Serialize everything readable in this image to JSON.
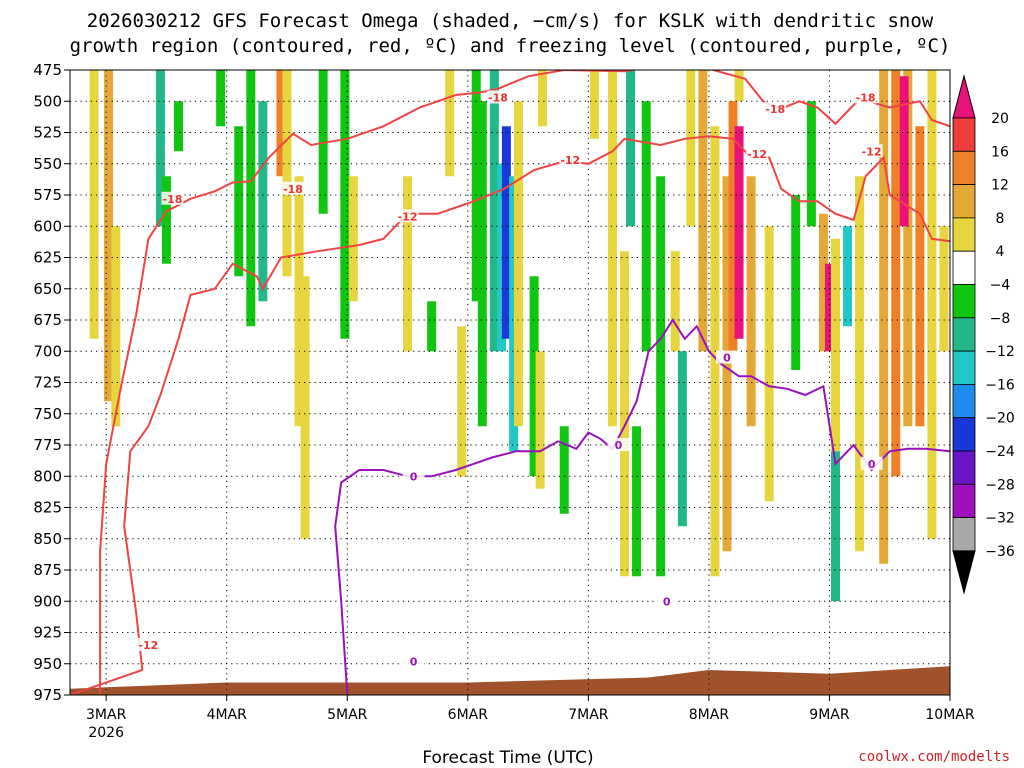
{
  "title_lines": [
    "2026030212 GFS Forecast Omega (shaded, −cm/s) for KSLK with dendritic snow",
    "growth region (contoured, red, ºC) and freezing level (contoured, purple, ºC)"
  ],
  "chart_data": {
    "type": "heatmap",
    "xlabel": "Forecast Time (UTC)",
    "ylabel": "",
    "credit": "coolwx.com/modelts",
    "x_ticks": [
      {
        "label": "3MAR",
        "sub": "2026",
        "t": 0
      },
      {
        "label": "4MAR",
        "sub": "",
        "t": 1
      },
      {
        "label": "5MAR",
        "sub": "",
        "t": 2
      },
      {
        "label": "6MAR",
        "sub": "",
        "t": 3
      },
      {
        "label": "7MAR",
        "sub": "",
        "t": 4
      },
      {
        "label": "8MAR",
        "sub": "",
        "t": 5
      },
      {
        "label": "9MAR",
        "sub": "",
        "t": 6
      },
      {
        "label": "10MAR",
        "sub": "",
        "t": 7
      }
    ],
    "xlim": [
      -0.3,
      7.0
    ],
    "y_ticks": [
      475,
      500,
      525,
      550,
      575,
      600,
      625,
      650,
      675,
      700,
      725,
      750,
      775,
      800,
      825,
      850,
      875,
      900,
      925,
      950,
      975
    ],
    "ylim": [
      975,
      475
    ],
    "colorbar": {
      "labels": [
        "20",
        "16",
        "12",
        "8",
        "4",
        "−4",
        "−8",
        "−12",
        "−16",
        "−20",
        "−24",
        "−28",
        "−32",
        "−36"
      ],
      "bins": [
        {
          "lo": 20,
          "hi": 99,
          "color": "#e8127a"
        },
        {
          "lo": 16,
          "hi": 20,
          "color": "#ee3d3d"
        },
        {
          "lo": 12,
          "hi": 16,
          "color": "#f07f26"
        },
        {
          "lo": 8,
          "hi": 12,
          "color": "#e3a836"
        },
        {
          "lo": 4,
          "hi": 8,
          "color": "#e6d53c"
        },
        {
          "lo": -4,
          "hi": 4,
          "color": "#ffffff"
        },
        {
          "lo": -8,
          "hi": -4,
          "color": "#11c611"
        },
        {
          "lo": -12,
          "hi": -8,
          "color": "#22b88a"
        },
        {
          "lo": -16,
          "hi": -12,
          "color": "#20c8c8"
        },
        {
          "lo": -20,
          "hi": -16,
          "color": "#1c8cef"
        },
        {
          "lo": -24,
          "hi": -20,
          "color": "#1a38d8"
        },
        {
          "lo": -28,
          "hi": -24,
          "color": "#6a14c8"
        },
        {
          "lo": -32,
          "hi": -28,
          "color": "#a010c0"
        },
        {
          "lo": -36,
          "hi": -32,
          "color": "#a8a8a8"
        },
        {
          "lo": -99,
          "hi": -36,
          "color": "#000000"
        }
      ]
    },
    "omega_columns": [
      {
        "t": -0.1,
        "p_top": 475,
        "p_bot": 620,
        "value": 6
      },
      {
        "t": -0.1,
        "p_top": 620,
        "p_bot": 690,
        "value": 5
      },
      {
        "t": 0.02,
        "p_top": 475,
        "p_bot": 740,
        "value": 9
      },
      {
        "t": 0.08,
        "p_top": 600,
        "p_bot": 760,
        "value": 5
      },
      {
        "t": 0.45,
        "p_top": 475,
        "p_bot": 600,
        "value": -11
      },
      {
        "t": 0.5,
        "p_top": 560,
        "p_bot": 630,
        "value": -7
      },
      {
        "t": 0.6,
        "p_top": 500,
        "p_bot": 540,
        "value": -6
      },
      {
        "t": 0.95,
        "p_top": 475,
        "p_bot": 520,
        "value": -6
      },
      {
        "t": 1.1,
        "p_top": 520,
        "p_bot": 640,
        "value": -7
      },
      {
        "t": 1.2,
        "p_top": 475,
        "p_bot": 680,
        "value": -7
      },
      {
        "t": 1.3,
        "p_top": 500,
        "p_bot": 660,
        "value": -9
      },
      {
        "t": 1.45,
        "p_top": 475,
        "p_bot": 560,
        "value": 14
      },
      {
        "t": 1.5,
        "p_top": 475,
        "p_bot": 640,
        "value": 7
      },
      {
        "t": 1.6,
        "p_top": 560,
        "p_bot": 760,
        "value": 5
      },
      {
        "t": 1.65,
        "p_top": 640,
        "p_bot": 850,
        "value": 6
      },
      {
        "t": 1.8,
        "p_top": 475,
        "p_bot": 590,
        "value": -6
      },
      {
        "t": 1.98,
        "p_top": 475,
        "p_bot": 690,
        "value": -7
      },
      {
        "t": 2.05,
        "p_top": 560,
        "p_bot": 660,
        "value": 5
      },
      {
        "t": 2.5,
        "p_top": 560,
        "p_bot": 700,
        "value": 5
      },
      {
        "t": 2.7,
        "p_top": 660,
        "p_bot": 700,
        "value": -6
      },
      {
        "t": 2.85,
        "p_top": 475,
        "p_bot": 560,
        "value": 5
      },
      {
        "t": 2.95,
        "p_top": 680,
        "p_bot": 800,
        "value": 5
      },
      {
        "t": 3.07,
        "p_top": 475,
        "p_bot": 660,
        "value": -8
      },
      {
        "t": 3.12,
        "p_top": 500,
        "p_bot": 760,
        "value": -6
      },
      {
        "t": 3.22,
        "p_top": 475,
        "p_bot": 700,
        "value": -9
      },
      {
        "t": 3.28,
        "p_top": 550,
        "p_bot": 700,
        "value": -16
      },
      {
        "t": 3.32,
        "p_top": 520,
        "p_bot": 690,
        "value": -22
      },
      {
        "t": 3.38,
        "p_top": 560,
        "p_bot": 780,
        "value": -13
      },
      {
        "t": 3.42,
        "p_top": 500,
        "p_bot": 760,
        "value": 5
      },
      {
        "t": 3.55,
        "p_top": 640,
        "p_bot": 800,
        "value": -6
      },
      {
        "t": 3.62,
        "p_top": 475,
        "p_bot": 520,
        "value": 5
      },
      {
        "t": 3.6,
        "p_top": 700,
        "p_bot": 810,
        "value": 5
      },
      {
        "t": 3.8,
        "p_top": 760,
        "p_bot": 830,
        "value": -6
      },
      {
        "t": 4.05,
        "p_top": 475,
        "p_bot": 530,
        "value": 5
      },
      {
        "t": 4.2,
        "p_top": 475,
        "p_bot": 760,
        "value": 5
      },
      {
        "t": 4.3,
        "p_top": 620,
        "p_bot": 880,
        "value": 5
      },
      {
        "t": 4.35,
        "p_top": 475,
        "p_bot": 600,
        "value": -9
      },
      {
        "t": 4.4,
        "p_top": 760,
        "p_bot": 880,
        "value": -6
      },
      {
        "t": 4.48,
        "p_top": 500,
        "p_bot": 700,
        "value": -6
      },
      {
        "t": 4.6,
        "p_top": 560,
        "p_bot": 880,
        "value": -7
      },
      {
        "t": 4.72,
        "p_top": 620,
        "p_bot": 700,
        "value": 5
      },
      {
        "t": 4.78,
        "p_top": 700,
        "p_bot": 840,
        "value": -11
      },
      {
        "t": 4.85,
        "p_top": 475,
        "p_bot": 600,
        "value": 6
      },
      {
        "t": 4.95,
        "p_top": 475,
        "p_bot": 700,
        "value": 10
      },
      {
        "t": 5.05,
        "p_top": 520,
        "p_bot": 880,
        "value": 7
      },
      {
        "t": 5.15,
        "p_top": 560,
        "p_bot": 860,
        "value": 11
      },
      {
        "t": 5.2,
        "p_top": 500,
        "p_bot": 700,
        "value": 15
      },
      {
        "t": 5.25,
        "p_top": 520,
        "p_bot": 690,
        "value": 22
      },
      {
        "t": 5.35,
        "p_top": 560,
        "p_bot": 760,
        "value": 10
      },
      {
        "t": 5.5,
        "p_top": 600,
        "p_bot": 820,
        "value": 6
      },
      {
        "t": 5.25,
        "p_top": 475,
        "p_bot": 500,
        "value": 7
      },
      {
        "t": 5.72,
        "p_top": 575,
        "p_bot": 715,
        "value": -7
      },
      {
        "t": 5.85,
        "p_top": 500,
        "p_bot": 600,
        "value": -7
      },
      {
        "t": 5.95,
        "p_top": 590,
        "p_bot": 700,
        "value": 10
      },
      {
        "t": 6.0,
        "p_top": 630,
        "p_bot": 700,
        "value": 22
      },
      {
        "t": 6.05,
        "p_top": 610,
        "p_bot": 780,
        "value": 7
      },
      {
        "t": 6.05,
        "p_top": 780,
        "p_bot": 900,
        "value": -9
      },
      {
        "t": 6.15,
        "p_top": 600,
        "p_bot": 680,
        "value": -13
      },
      {
        "t": 6.25,
        "p_top": 560,
        "p_bot": 860,
        "value": 5
      },
      {
        "t": 6.45,
        "p_top": 475,
        "p_bot": 870,
        "value": 9
      },
      {
        "t": 6.55,
        "p_top": 475,
        "p_bot": 800,
        "value": 14
      },
      {
        "t": 6.65,
        "p_top": 475,
        "p_bot": 760,
        "value": 10
      },
      {
        "t": 6.62,
        "p_top": 480,
        "p_bot": 600,
        "value": 22
      },
      {
        "t": 6.75,
        "p_top": 520,
        "p_bot": 760,
        "value": 13
      },
      {
        "t": 6.85,
        "p_top": 475,
        "p_bot": 850,
        "value": 6
      },
      {
        "t": 6.95,
        "p_top": 600,
        "p_bot": 700,
        "value": 6
      }
    ],
    "terrain": {
      "color": "#a0522d",
      "p_top": [
        [
          -0.3,
          970
        ],
        [
          1.0,
          965
        ],
        [
          3.0,
          965
        ],
        [
          4.5,
          961
        ],
        [
          5.0,
          955
        ],
        [
          6.0,
          958
        ],
        [
          7.0,
          952
        ]
      ]
    },
    "contours": [
      {
        "name": "-18C",
        "color": "#ee4444",
        "label": "-18",
        "label_points": [
          [
            0.55,
            578
          ],
          [
            1.55,
            570
          ],
          [
            3.25,
            497
          ],
          [
            5.55,
            506
          ],
          [
            6.3,
            497
          ]
        ],
        "points": [
          [
            -0.05,
            975
          ],
          [
            -0.05,
            860
          ],
          [
            0.0,
            790
          ],
          [
            0.12,
            730
          ],
          [
            0.25,
            670
          ],
          [
            0.35,
            610
          ],
          [
            0.5,
            588
          ],
          [
            0.7,
            578
          ],
          [
            0.9,
            572
          ],
          [
            1.05,
            565
          ],
          [
            1.2,
            564
          ],
          [
            1.35,
            545
          ],
          [
            1.55,
            526
          ],
          [
            1.7,
            535
          ],
          [
            2.0,
            530
          ],
          [
            2.3,
            520
          ],
          [
            2.6,
            505
          ],
          [
            2.9,
            495
          ],
          [
            3.1,
            493
          ],
          [
            3.25,
            490
          ],
          [
            3.5,
            480
          ],
          [
            3.8,
            475
          ],
          [
            4.3,
            476
          ],
          [
            4.7,
            470
          ],
          [
            5.0,
            474
          ],
          [
            5.3,
            482
          ],
          [
            5.45,
            500
          ],
          [
            5.6,
            506
          ],
          [
            5.75,
            500
          ],
          [
            5.9,
            505
          ],
          [
            6.05,
            518
          ],
          [
            6.25,
            498
          ],
          [
            6.5,
            505
          ],
          [
            6.75,
            500
          ],
          [
            6.85,
            515
          ],
          [
            7.0,
            520
          ]
        ]
      },
      {
        "name": "-12C",
        "color": "#ee4444",
        "label": "-12",
        "label_points": [
          [
            0.35,
            935
          ],
          [
            2.5,
            592
          ],
          [
            3.85,
            547
          ],
          [
            5.4,
            542
          ],
          [
            6.35,
            540
          ]
        ],
        "points": [
          [
            -0.3,
            975
          ],
          [
            0.3,
            955
          ],
          [
            0.25,
            910
          ],
          [
            0.15,
            840
          ],
          [
            0.2,
            780
          ],
          [
            0.35,
            760
          ],
          [
            0.45,
            735
          ],
          [
            0.6,
            690
          ],
          [
            0.7,
            655
          ],
          [
            0.9,
            650
          ],
          [
            1.05,
            630
          ],
          [
            1.25,
            640
          ],
          [
            1.3,
            650
          ],
          [
            1.45,
            625
          ],
          [
            1.75,
            620
          ],
          [
            2.1,
            615
          ],
          [
            2.3,
            610
          ],
          [
            2.5,
            590
          ],
          [
            2.75,
            590
          ],
          [
            2.9,
            585
          ],
          [
            3.05,
            580
          ],
          [
            3.3,
            570
          ],
          [
            3.55,
            555
          ],
          [
            3.8,
            548
          ],
          [
            4.0,
            550
          ],
          [
            4.2,
            540
          ],
          [
            4.3,
            530
          ],
          [
            4.6,
            535
          ],
          [
            4.8,
            530
          ],
          [
            5.0,
            528
          ],
          [
            5.2,
            530
          ],
          [
            5.35,
            545
          ],
          [
            5.5,
            545
          ],
          [
            5.6,
            570
          ],
          [
            5.75,
            580
          ],
          [
            5.9,
            580
          ],
          [
            6.05,
            590
          ],
          [
            6.2,
            595
          ],
          [
            6.3,
            560
          ],
          [
            6.45,
            545
          ],
          [
            6.5,
            575
          ],
          [
            6.75,
            590
          ],
          [
            6.85,
            610
          ],
          [
            7.0,
            612
          ]
        ]
      },
      {
        "name": "0C",
        "color": "#9911bb",
        "label": "0",
        "label_points": [
          [
            2.55,
            800
          ],
          [
            4.25,
            775
          ],
          [
            4.65,
            900
          ],
          [
            2.55,
            948
          ],
          [
            5.15,
            705
          ],
          [
            6.35,
            790
          ]
        ],
        "points": [
          [
            2.0,
            975
          ],
          [
            1.95,
            900
          ],
          [
            1.9,
            840
          ],
          [
            1.95,
            805
          ],
          [
            2.1,
            795
          ],
          [
            2.3,
            795
          ],
          [
            2.5,
            800
          ],
          [
            2.7,
            800
          ],
          [
            2.9,
            795
          ],
          [
            3.05,
            790
          ],
          [
            3.2,
            785
          ],
          [
            3.4,
            780
          ],
          [
            3.6,
            780
          ],
          [
            3.75,
            772
          ],
          [
            3.9,
            778
          ],
          [
            4.0,
            765
          ],
          [
            4.1,
            770
          ],
          [
            4.2,
            778
          ],
          [
            4.3,
            760
          ],
          [
            4.4,
            740
          ],
          [
            4.5,
            700
          ],
          [
            4.6,
            690
          ],
          [
            4.7,
            675
          ],
          [
            4.8,
            690
          ],
          [
            4.9,
            680
          ],
          [
            5.0,
            700
          ],
          [
            5.1,
            710
          ],
          [
            5.25,
            720
          ],
          [
            5.35,
            720
          ],
          [
            5.5,
            728
          ],
          [
            5.65,
            730
          ],
          [
            5.8,
            735
          ],
          [
            5.95,
            728
          ],
          [
            6.05,
            790
          ],
          [
            6.2,
            775
          ],
          [
            6.35,
            795
          ],
          [
            6.5,
            780
          ],
          [
            6.65,
            778
          ],
          [
            6.8,
            778
          ],
          [
            7.0,
            780
          ]
        ]
      }
    ]
  }
}
